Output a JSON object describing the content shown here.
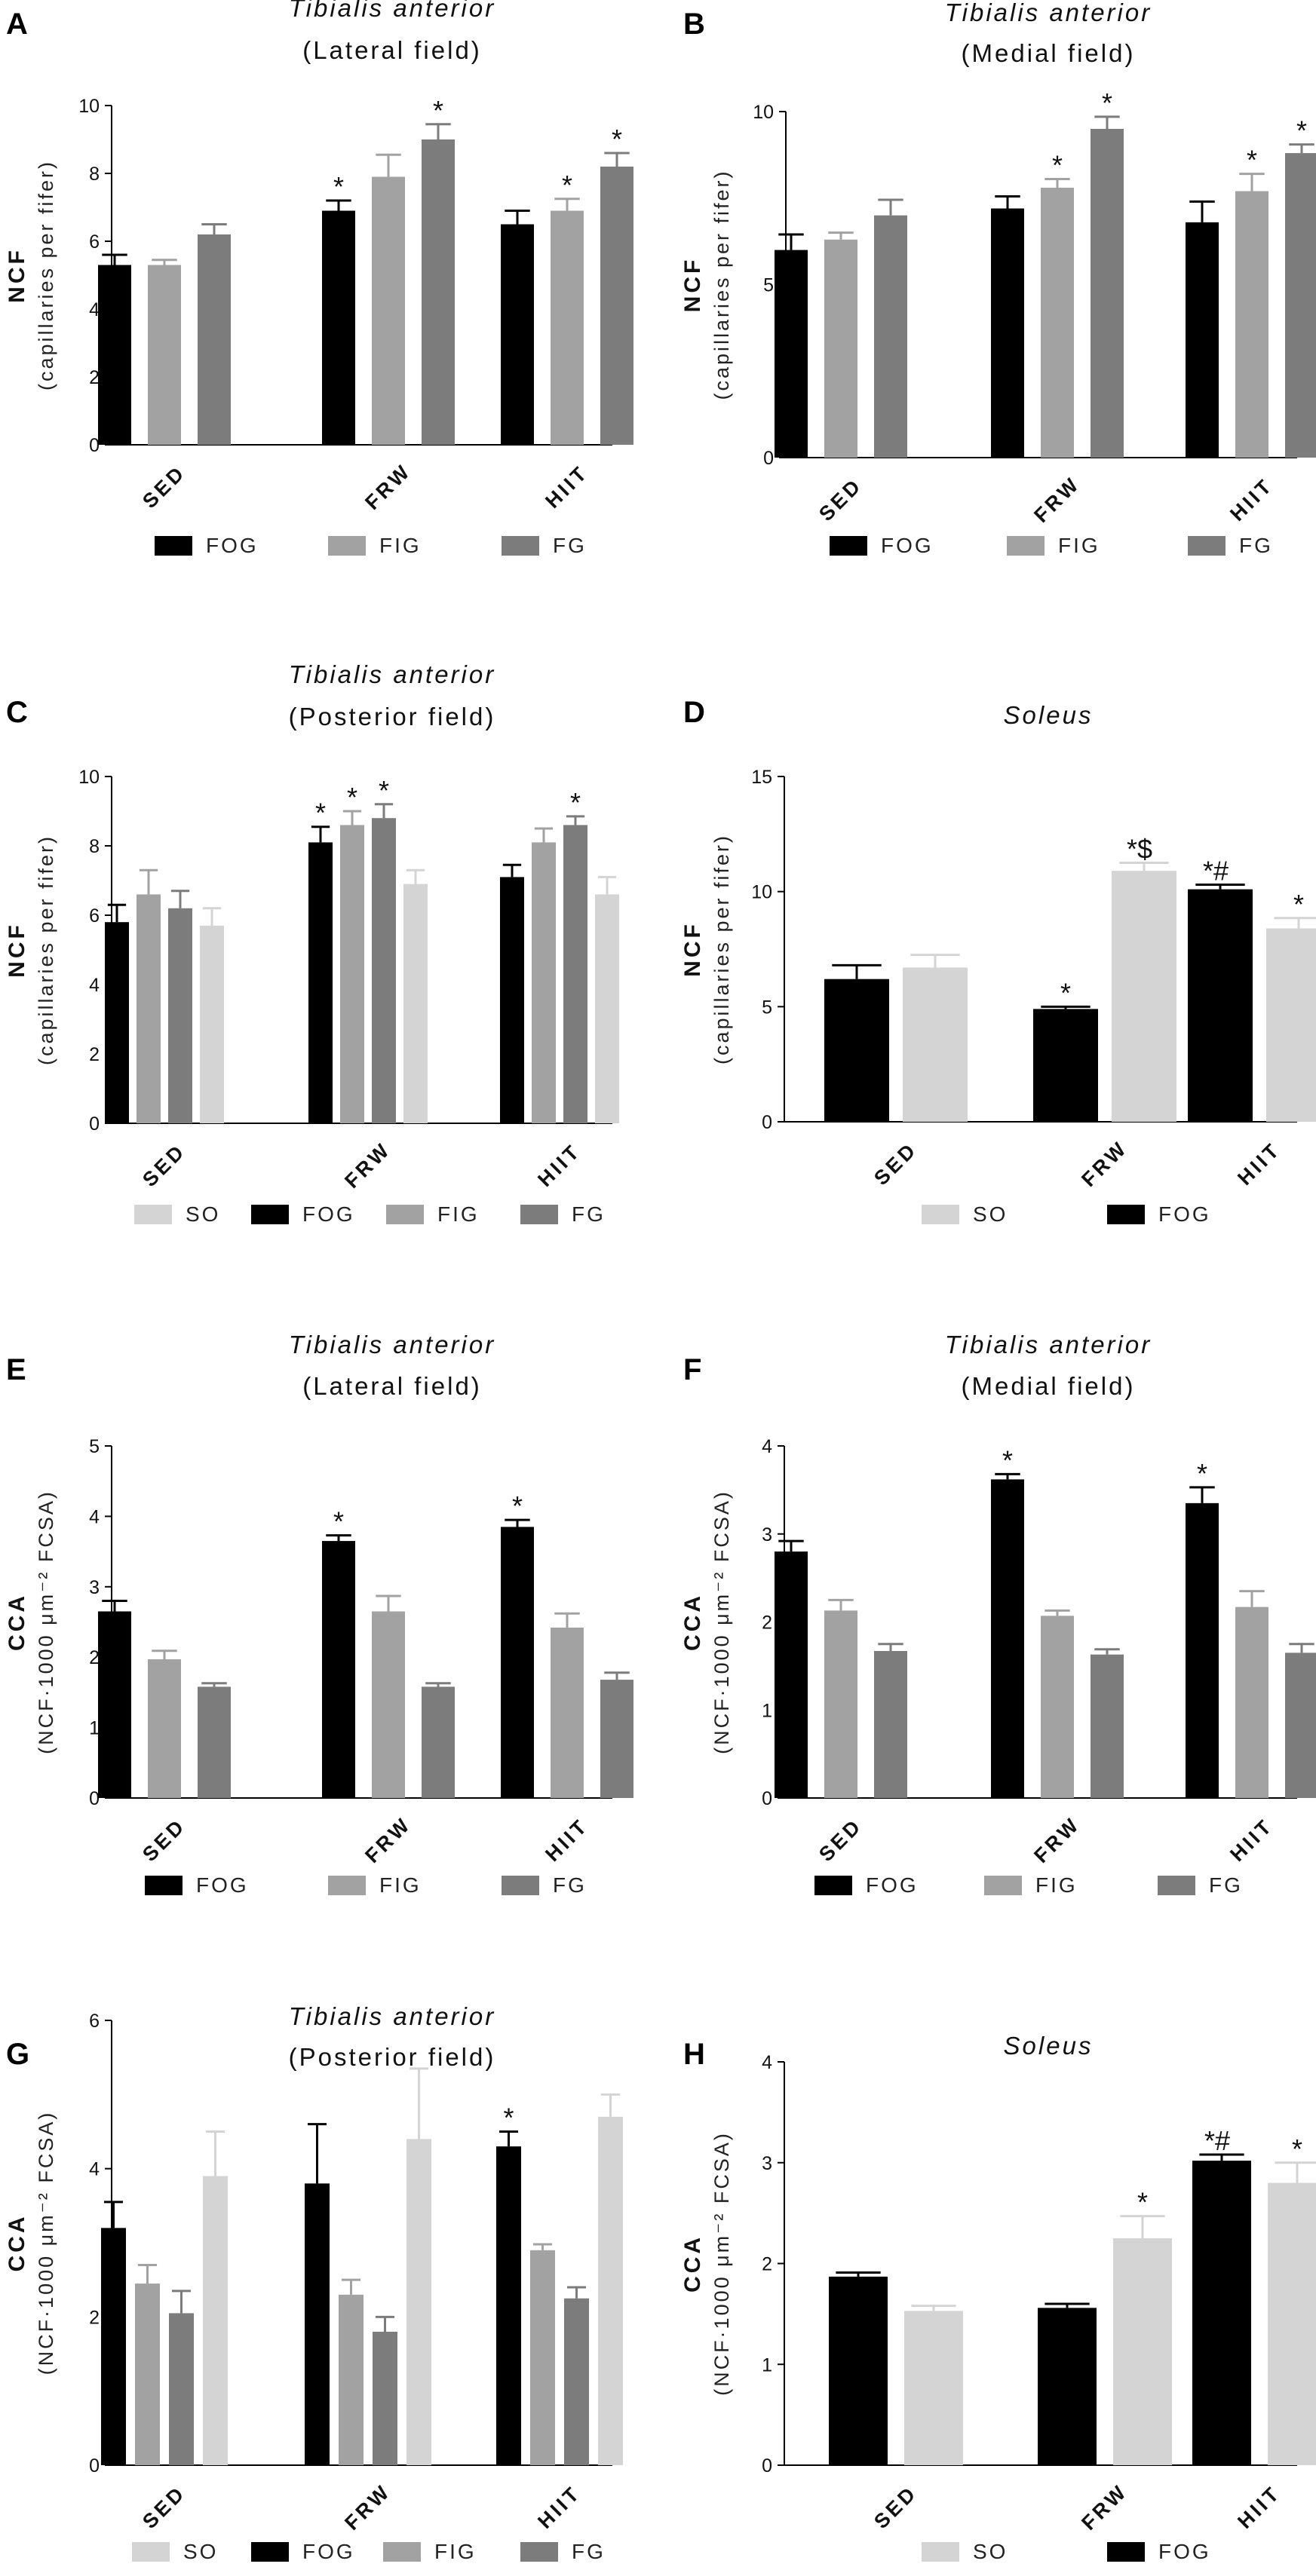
{
  "colors": {
    "SO": "#d4d4d4",
    "FOG": "#000000",
    "FIG": "#a2a2a2",
    "FG": "#7c7c7c"
  },
  "chart_data": [
    {
      "panel": "A",
      "type": "bar",
      "title": [
        "Tibialis anterior",
        "(Lateral field)"
      ],
      "ylabel": "NCF",
      "ylabel_sub": "(capillaries per fifer)",
      "ylim": [
        0,
        10
      ],
      "yticks": [
        0,
        2,
        4,
        6,
        8,
        10
      ],
      "categories": [
        "SED",
        "FRW",
        "HIIT"
      ],
      "legend": [
        "FOG",
        "FIG",
        "FG"
      ],
      "series": [
        {
          "name": "FOG",
          "values": [
            5.3,
            6.9,
            6.5
          ],
          "errors": [
            0.3,
            0.3,
            0.4
          ],
          "marks": [
            "",
            "*",
            ""
          ]
        },
        {
          "name": "FIG",
          "values": [
            5.3,
            7.9,
            6.9
          ],
          "errors": [
            0.15,
            0.65,
            0.35
          ],
          "marks": [
            "",
            "",
            "*"
          ]
        },
        {
          "name": "FG",
          "values": [
            6.2,
            9.0,
            8.2
          ],
          "errors": [
            0.3,
            0.45,
            0.4
          ],
          "marks": [
            "",
            "*",
            "*"
          ]
        }
      ]
    },
    {
      "panel": "B",
      "type": "bar",
      "title": [
        "Tibialis anterior",
        "(Medial field)"
      ],
      "ylabel": "NCF",
      "ylabel_sub": "(capillaries per fifer)",
      "ylim": [
        0,
        10
      ],
      "yticks": [
        0,
        5,
        10
      ],
      "categories": [
        "SED",
        "FRW",
        "HIIT"
      ],
      "legend": [
        "FOG",
        "FIG",
        "FG"
      ],
      "series": [
        {
          "name": "FOG",
          "values": [
            6.0,
            7.2,
            6.8
          ],
          "errors": [
            0.45,
            0.35,
            0.6
          ],
          "marks": [
            "",
            "",
            ""
          ]
        },
        {
          "name": "FIG",
          "values": [
            6.3,
            7.8,
            7.7
          ],
          "errors": [
            0.2,
            0.25,
            0.5
          ],
          "marks": [
            "",
            "*",
            "*"
          ]
        },
        {
          "name": "FG",
          "values": [
            7.0,
            9.5,
            8.8
          ],
          "errors": [
            0.45,
            0.35,
            0.25
          ],
          "marks": [
            "",
            "*",
            "*"
          ]
        }
      ]
    },
    {
      "panel": "C",
      "type": "bar",
      "title": [
        "Tibialis anterior",
        "(Posterior field)"
      ],
      "ylabel": "NCF",
      "ylabel_sub": "(capillaries per fifer)",
      "ylim": [
        0,
        10
      ],
      "yticks": [
        0,
        2,
        4,
        6,
        8,
        10
      ],
      "categories": [
        "SED",
        "FRW",
        "HIIT"
      ],
      "legend": [
        "SO",
        "FOG",
        "FIG",
        "FG"
      ],
      "series": [
        {
          "name": "FOG",
          "values": [
            5.8,
            8.1,
            7.1
          ],
          "errors": [
            0.5,
            0.45,
            0.35
          ],
          "marks": [
            "",
            "*",
            ""
          ]
        },
        {
          "name": "FIG",
          "values": [
            6.6,
            8.6,
            8.1
          ],
          "errors": [
            0.7,
            0.4,
            0.4
          ],
          "marks": [
            "",
            "*",
            ""
          ]
        },
        {
          "name": "FG",
          "values": [
            6.2,
            8.8,
            8.6
          ],
          "errors": [
            0.5,
            0.4,
            0.25
          ],
          "marks": [
            "",
            "*",
            "*"
          ]
        },
        {
          "name": "SO",
          "values": [
            5.7,
            6.9,
            6.6
          ],
          "errors": [
            0.5,
            0.4,
            0.5
          ],
          "marks": [
            "",
            "",
            ""
          ]
        }
      ]
    },
    {
      "panel": "D",
      "type": "bar",
      "title": [
        "Soleus"
      ],
      "ylabel": "NCF",
      "ylabel_sub": "(capillaries per fifer)",
      "ylim": [
        0,
        15
      ],
      "yticks": [
        0,
        5,
        10,
        15
      ],
      "categories": [
        "SED",
        "FRW",
        "HIIT"
      ],
      "legend": [
        "SO",
        "FOG"
      ],
      "series": [
        {
          "name": "FOG",
          "values": [
            6.2,
            4.9,
            10.1
          ],
          "errors": [
            0.6,
            0.1,
            0.2
          ],
          "marks": [
            "",
            "*",
            "*#"
          ]
        },
        {
          "name": "SO",
          "values": [
            6.7,
            10.9,
            8.4
          ],
          "errors": [
            0.55,
            0.35,
            0.45
          ],
          "marks": [
            "",
            "*$",
            "*"
          ]
        }
      ]
    },
    {
      "panel": "E",
      "type": "bar",
      "title": [
        "Tibialis anterior",
        "(Lateral field)"
      ],
      "ylabel": "CCA",
      "ylabel_sub": "(NCF·1000 μm⁻² FCSA)",
      "ylim": [
        0,
        5
      ],
      "yticks": [
        0,
        1,
        2,
        3,
        4,
        5
      ],
      "categories": [
        "SED",
        "FRW",
        "HIIT"
      ],
      "legend": [
        "FOG",
        "FIG",
        "FG"
      ],
      "series": [
        {
          "name": "FOG",
          "values": [
            2.65,
            3.65,
            3.85
          ],
          "errors": [
            0.15,
            0.08,
            0.1
          ],
          "marks": [
            "",
            "*",
            "*"
          ]
        },
        {
          "name": "FIG",
          "values": [
            1.97,
            2.65,
            2.42
          ],
          "errors": [
            0.12,
            0.22,
            0.2
          ],
          "marks": [
            "",
            "",
            ""
          ]
        },
        {
          "name": "FG",
          "values": [
            1.58,
            1.58,
            1.68
          ],
          "errors": [
            0.05,
            0.05,
            0.1
          ],
          "marks": [
            "",
            "",
            ""
          ]
        }
      ]
    },
    {
      "panel": "F",
      "type": "bar",
      "title": [
        "Tibialis anterior",
        "(Medial field)"
      ],
      "ylabel": "CCA",
      "ylabel_sub": "(NCF·1000 μm⁻² FCSA)",
      "ylim": [
        0,
        4
      ],
      "yticks": [
        0,
        1,
        2,
        3,
        4
      ],
      "categories": [
        "SED",
        "FRW",
        "HIIT"
      ],
      "legend": [
        "FOG",
        "FIG",
        "FG"
      ],
      "series": [
        {
          "name": "FOG",
          "values": [
            2.8,
            3.62,
            3.35
          ],
          "errors": [
            0.12,
            0.06,
            0.18
          ],
          "marks": [
            "",
            "*",
            "*"
          ]
        },
        {
          "name": "FIG",
          "values": [
            2.13,
            2.07,
            2.17
          ],
          "errors": [
            0.12,
            0.06,
            0.18
          ],
          "marks": [
            "",
            "",
            ""
          ]
        },
        {
          "name": "FG",
          "values": [
            1.67,
            1.63,
            1.65
          ],
          "errors": [
            0.08,
            0.06,
            0.1
          ],
          "marks": [
            "",
            "",
            ""
          ]
        }
      ]
    },
    {
      "panel": "G",
      "type": "bar",
      "title": [
        "Tibialis anterior",
        "(Posterior field)"
      ],
      "ylabel": "CCA",
      "ylabel_sub": "(NCF·1000 μm⁻² FCSA)",
      "ylim": [
        0,
        6
      ],
      "yticks": [
        0,
        2,
        4,
        6
      ],
      "categories": [
        "SED",
        "FRW",
        "HIIT"
      ],
      "legend": [
        "SO",
        "FOG",
        "FIG",
        "FG"
      ],
      "series": [
        {
          "name": "FOG",
          "values": [
            3.2,
            3.8,
            4.3
          ],
          "errors": [
            0.35,
            0.8,
            0.2
          ],
          "marks": [
            "",
            "",
            "*"
          ]
        },
        {
          "name": "FIG",
          "values": [
            2.45,
            2.3,
            2.9
          ],
          "errors": [
            0.25,
            0.2,
            0.08
          ],
          "marks": [
            "",
            "",
            ""
          ]
        },
        {
          "name": "FG",
          "values": [
            2.05,
            1.8,
            2.25
          ],
          "errors": [
            0.3,
            0.2,
            0.15
          ],
          "marks": [
            "",
            "",
            ""
          ]
        },
        {
          "name": "SO",
          "values": [
            3.9,
            4.4,
            4.7
          ],
          "errors": [
            0.6,
            0.95,
            0.3
          ],
          "marks": [
            "",
            "",
            ""
          ]
        }
      ]
    },
    {
      "panel": "H",
      "type": "bar",
      "title": [
        "Soleus"
      ],
      "ylabel": "CCA",
      "ylabel_sub": "(NCF·1000 μm⁻² FCSA)",
      "ylim": [
        0,
        4
      ],
      "yticks": [
        0,
        1,
        2,
        3,
        4
      ],
      "categories": [
        "SED",
        "FRW",
        "HIIT"
      ],
      "legend": [
        "SO",
        "FOG"
      ],
      "series": [
        {
          "name": "FOG",
          "values": [
            1.87,
            1.56,
            3.02
          ],
          "errors": [
            0.04,
            0.04,
            0.06
          ],
          "marks": [
            "",
            "",
            "*#"
          ]
        },
        {
          "name": "SO",
          "values": [
            1.53,
            2.25,
            2.8
          ],
          "errors": [
            0.05,
            0.22,
            0.2
          ],
          "marks": [
            "",
            "*",
            "*"
          ]
        }
      ]
    }
  ]
}
